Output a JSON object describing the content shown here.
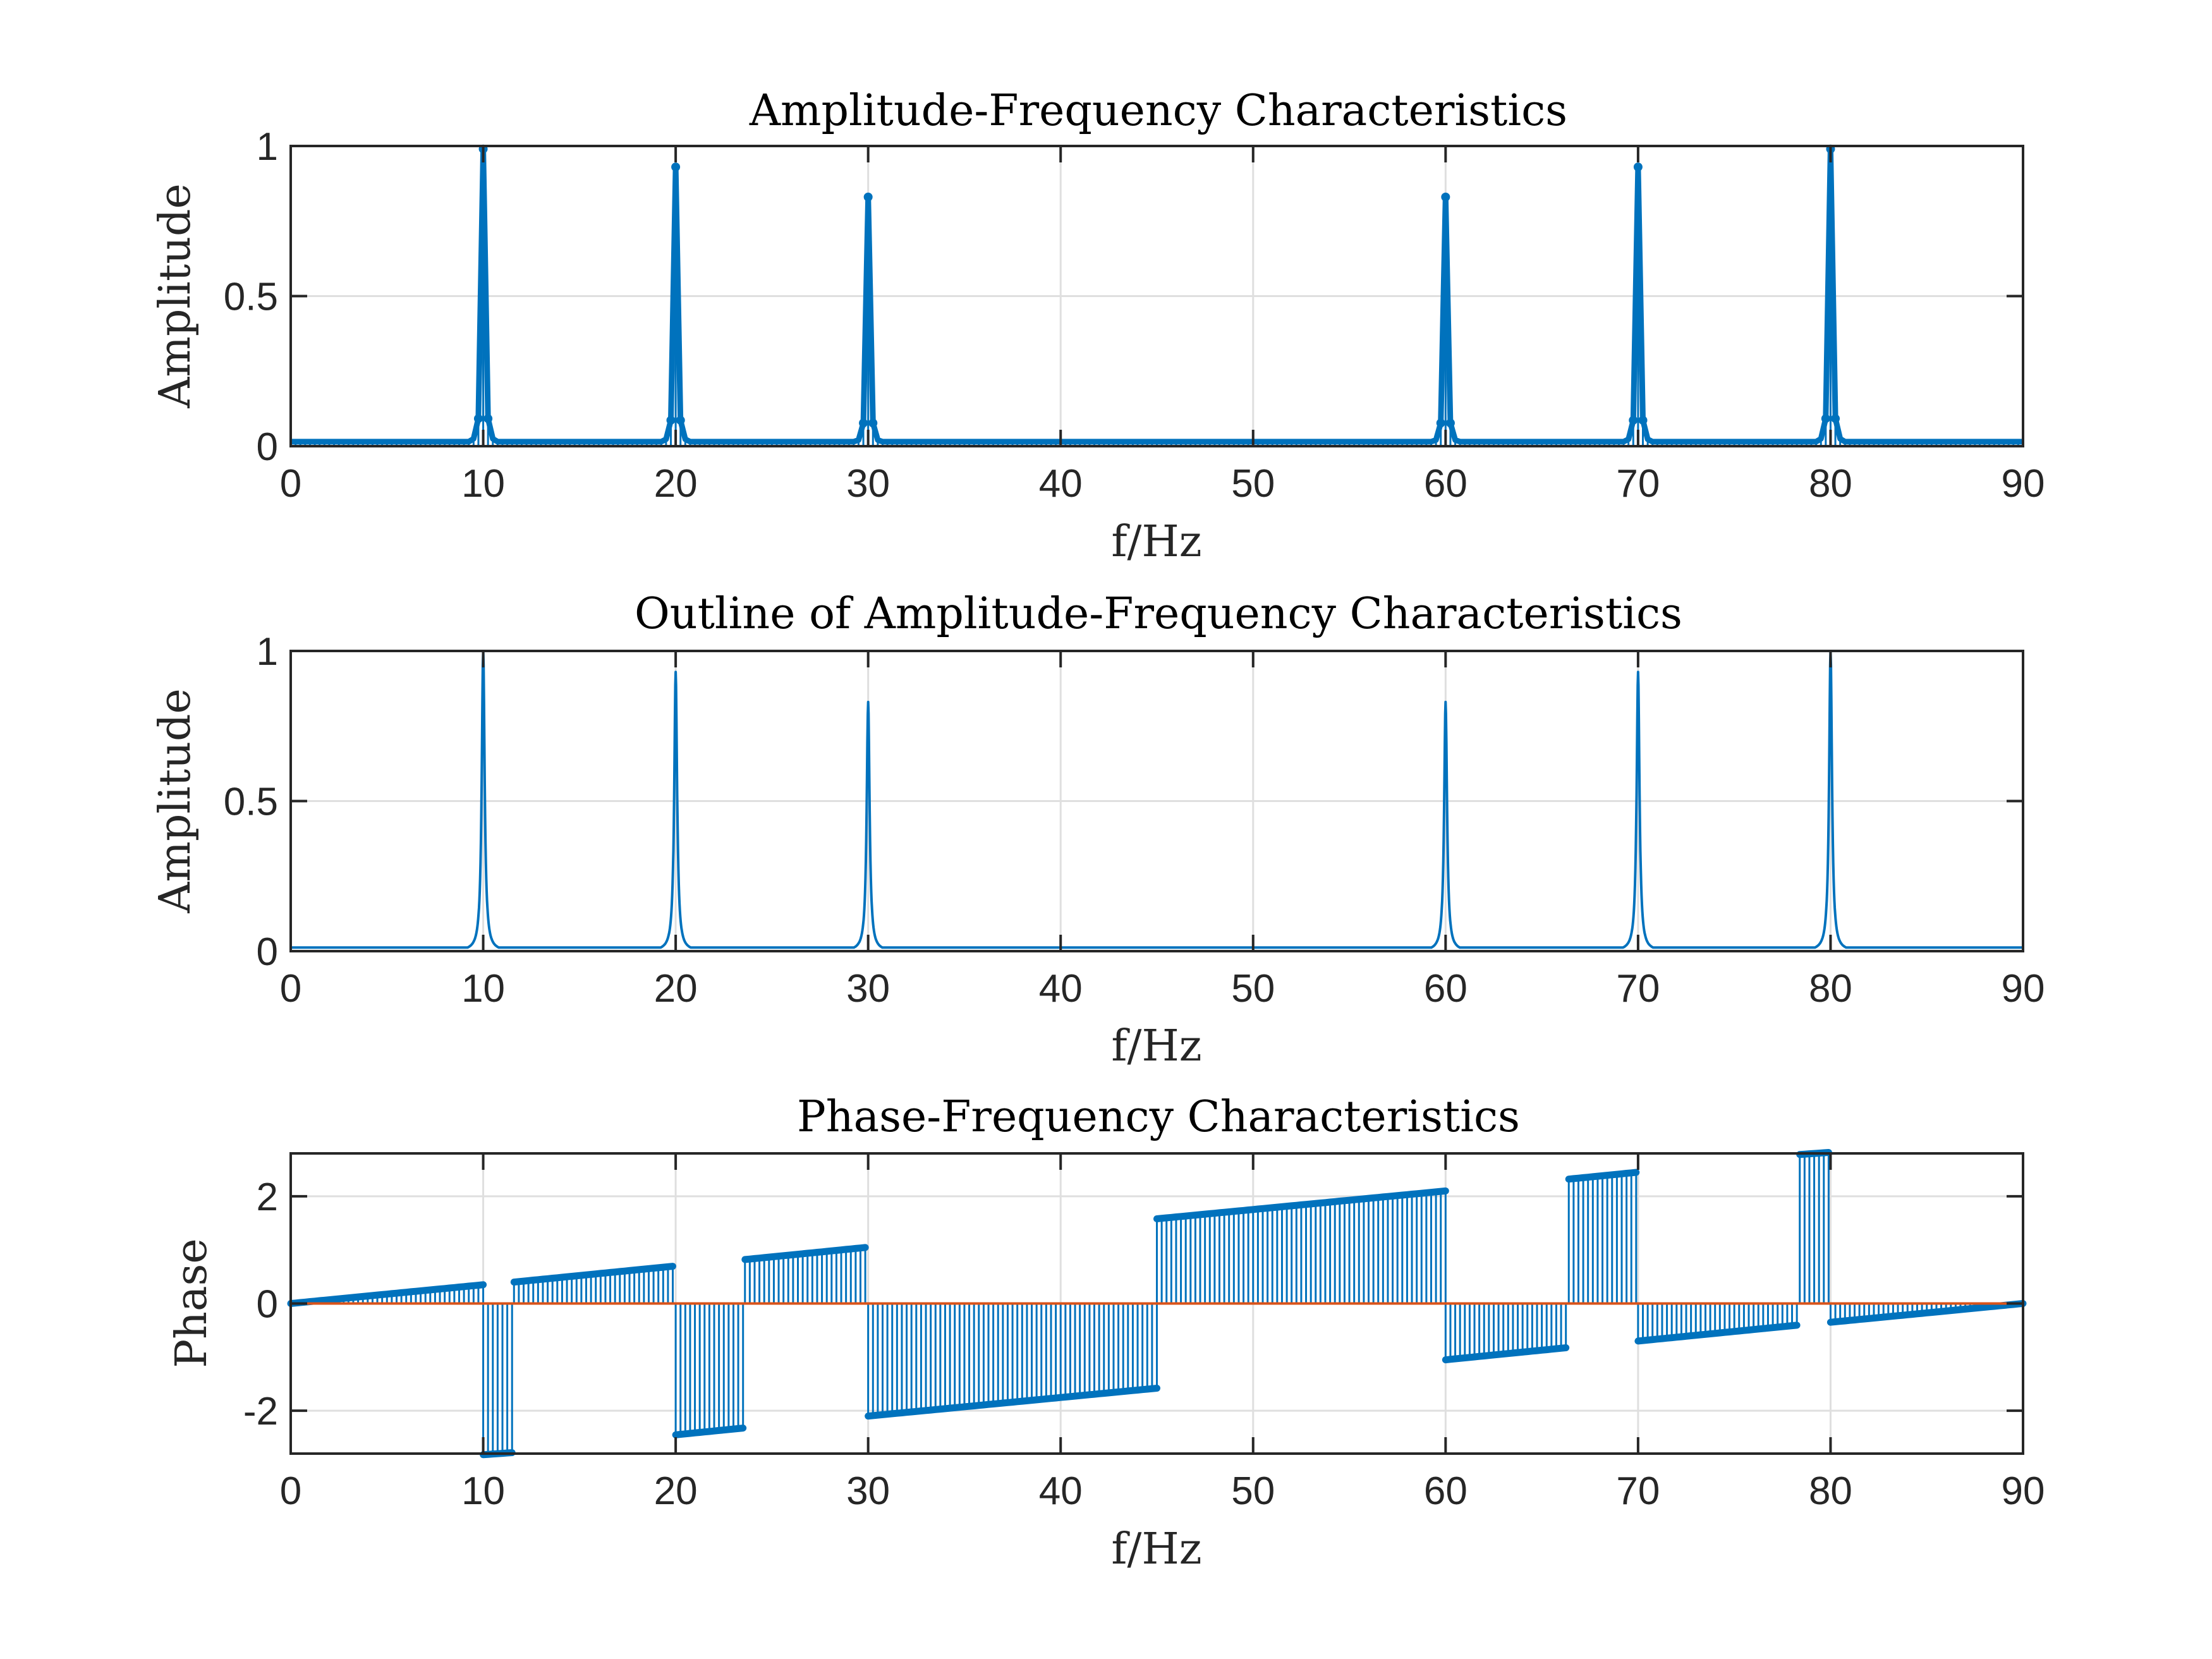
{
  "chart_data": [
    {
      "type": "stem",
      "title": "Amplitude-Frequency Characteristics",
      "xlabel": "f/Hz",
      "ylabel": "Amplitude",
      "xlim": [
        0,
        90
      ],
      "ylim": [
        0,
        1
      ],
      "xticks": [
        0,
        10,
        20,
        30,
        40,
        50,
        60,
        70,
        80,
        90
      ],
      "yticks": [
        0,
        0.5,
        1
      ],
      "ytick_labels": [
        "0",
        "0.5",
        "1"
      ],
      "grid": true,
      "color": "#0072bd",
      "peaks": [
        {
          "f": 10,
          "amp": 0.99
        },
        {
          "f": 20,
          "amp": 0.93
        },
        {
          "f": 30,
          "amp": 0.83
        },
        {
          "f": 60,
          "amp": 0.83
        },
        {
          "f": 70,
          "amp": 0.93
        },
        {
          "f": 80,
          "amp": 0.99
        }
      ],
      "baseline_amplitude": 0.015,
      "sample_spacing_hz": 0.25
    },
    {
      "type": "line",
      "title": "Outline of Amplitude-Frequency Characteristics",
      "xlabel": "f/Hz",
      "ylabel": "Amplitude",
      "xlim": [
        0,
        90
      ],
      "ylim": [
        0,
        1
      ],
      "xticks": [
        0,
        10,
        20,
        30,
        40,
        50,
        60,
        70,
        80,
        90
      ],
      "yticks": [
        0,
        0.5,
        1
      ],
      "ytick_labels": [
        "0",
        "0.5",
        "1"
      ],
      "grid": true,
      "color": "#0072bd",
      "peaks": [
        {
          "f": 10,
          "amp": 1.0
        },
        {
          "f": 20,
          "amp": 0.93
        },
        {
          "f": 30,
          "amp": 0.83
        },
        {
          "f": 60,
          "amp": 0.83
        },
        {
          "f": 70,
          "amp": 0.93
        },
        {
          "f": 80,
          "amp": 1.0
        }
      ]
    },
    {
      "type": "stem",
      "title": "Phase-Frequency Characteristics",
      "xlabel": "f/Hz",
      "ylabel": "Phase",
      "xlim": [
        0,
        90
      ],
      "ylim": [
        -2.8,
        2.8
      ],
      "xticks": [
        0,
        10,
        20,
        30,
        40,
        50,
        60,
        70,
        80,
        90
      ],
      "yticks": [
        -2,
        0,
        2
      ],
      "ytick_labels": [
        "-2",
        "0",
        "2"
      ],
      "grid": true,
      "color": "#0072bd",
      "zero_line_color": "#d95319",
      "segments": [
        {
          "f_start": 0,
          "f_end": 10,
          "phase_start": 0.0,
          "phase_end": 0.35
        },
        {
          "f_start": 10,
          "f_end": 11.6,
          "phase_start": -2.82,
          "phase_end": -2.78
        },
        {
          "f_start": 11.6,
          "f_end": 20,
          "phase_start": 0.4,
          "phase_end": 0.7
        },
        {
          "f_start": 20,
          "f_end": 23.6,
          "phase_start": -2.45,
          "phase_end": -2.32
        },
        {
          "f_start": 23.6,
          "f_end": 30,
          "phase_start": 0.82,
          "phase_end": 1.05
        },
        {
          "f_start": 30,
          "f_end": 45,
          "phase_start": -2.1,
          "phase_end": -1.58
        },
        {
          "f_start": 45,
          "f_end": 60,
          "phase_start": 1.58,
          "phase_end": 2.1
        },
        {
          "f_start": 60,
          "f_end": 66.4,
          "phase_start": -1.05,
          "phase_end": -0.82
        },
        {
          "f_start": 66.4,
          "f_end": 70,
          "phase_start": 2.32,
          "phase_end": 2.45
        },
        {
          "f_start": 70,
          "f_end": 78.4,
          "phase_start": -0.7,
          "phase_end": -0.4
        },
        {
          "f_start": 78.4,
          "f_end": 80,
          "phase_start": 2.78,
          "phase_end": 2.82
        },
        {
          "f_start": 80,
          "f_end": 90,
          "phase_start": -0.35,
          "phase_end": 0.0
        }
      ],
      "sample_spacing_hz": 0.25
    }
  ]
}
